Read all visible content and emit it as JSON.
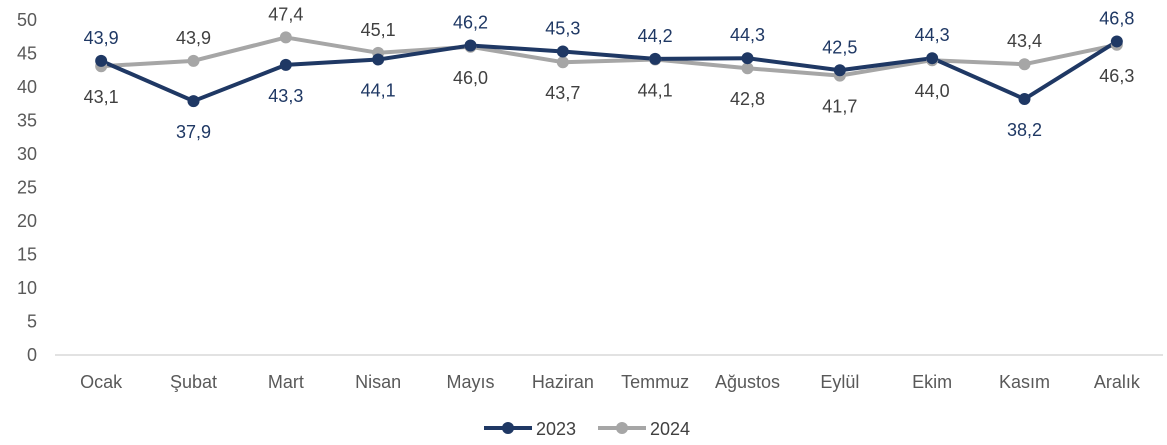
{
  "chart_data": {
    "type": "line",
    "categories": [
      "Ocak",
      "Şubat",
      "Mart",
      "Nisan",
      "Mayıs",
      "Haziran",
      "Temmuz",
      "Ağustos",
      "Eylül",
      "Ekim",
      "Kasım",
      "Aralık"
    ],
    "series": [
      {
        "name": "2023",
        "color": "#1f3864",
        "values": [
          43.9,
          37.9,
          43.3,
          44.1,
          46.2,
          45.3,
          44.2,
          44.3,
          42.5,
          44.3,
          38.2,
          46.8
        ],
        "labels": [
          "43,9",
          "37,9",
          "43,3",
          "44,1",
          "46,2",
          "45,3",
          "44,2",
          "44,3",
          "42,5",
          "44,3",
          "38,2",
          "46,8"
        ]
      },
      {
        "name": "2024",
        "color": "#a6a6a6",
        "values": [
          43.1,
          43.9,
          47.4,
          45.1,
          46.0,
          43.7,
          44.1,
          42.8,
          41.7,
          44.0,
          43.4,
          46.3
        ],
        "labels": [
          "43,1",
          "43,9",
          "47,4",
          "45,1",
          "46,0",
          "43,7",
          "44,1",
          "42,8",
          "41,7",
          "44,0",
          "43,4",
          "46,3"
        ]
      }
    ],
    "title": "",
    "xlabel": "",
    "ylabel": "",
    "ylim": [
      0,
      50
    ],
    "yticks": [
      0,
      5,
      10,
      15,
      20,
      25,
      30,
      35,
      40,
      45,
      50
    ],
    "grid": false,
    "legend": "bottom-center"
  }
}
